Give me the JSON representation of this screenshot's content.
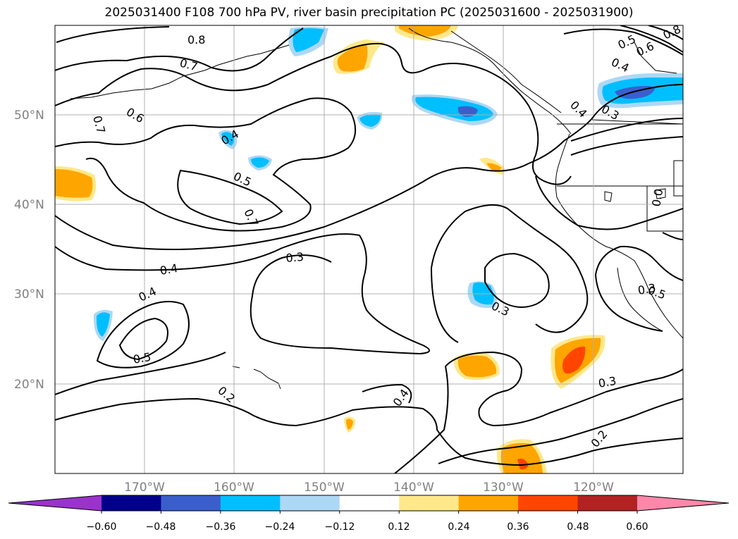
{
  "title": "2025031400 F108 700 hPa PV, river basin precipitation PC (2025031600 - 2025031900)",
  "lat_labels": [
    "50°N",
    "40°N",
    "30°N",
    "20°N"
  ],
  "lon_labels": [
    "170°W",
    "160°W",
    "150°W",
    "140°W",
    "130°W",
    "120°W"
  ],
  "contour_labels": [
    "0.8",
    "0.7",
    "0.7",
    "0.6",
    "0.4",
    "0.5",
    "0.7",
    "0.4",
    "0.3",
    "0.4",
    "0.5",
    "0.2",
    "0.3",
    "0.4",
    "0.4",
    "0.3",
    "0.5",
    "0.6",
    "0.4",
    "0.3",
    "0.3",
    "0.2",
    "0.8",
    "0.5",
    "0.0"
  ],
  "colorbar": {
    "ticks": [
      "−0.60",
      "−0.48",
      "−0.36",
      "−0.24",
      "−0.12",
      "0.12",
      "0.24",
      "0.36",
      "0.48",
      "0.60"
    ],
    "colors": [
      "#9933cc",
      "#00008b",
      "#3a5fcd",
      "#00bfff",
      "#add8f5",
      "#ffffff",
      "#ffe88a",
      "#ffa500",
      "#ff4500",
      "#b22222",
      "#ff88aa"
    ]
  }
}
